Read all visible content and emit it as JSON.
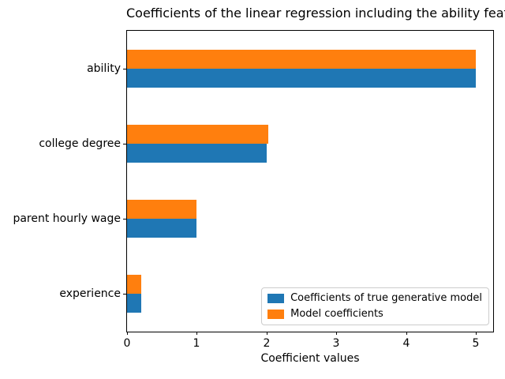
{
  "chart_data": {
    "type": "bar",
    "orientation": "horizontal",
    "title": "Coefficients of the linear regression including the ability features",
    "xlabel": "Coefficient values",
    "ylabel": "",
    "categories": [
      "ability",
      "college degree",
      "parent hourly wage",
      "experience"
    ],
    "series": [
      {
        "name": "Coefficients of true generative model",
        "color": "#1f77b4",
        "values": [
          5.0,
          2.0,
          1.0,
          0.2
        ]
      },
      {
        "name": "Model coefficients",
        "color": "#ff7f0e",
        "values": [
          5.0,
          2.02,
          1.0,
          0.2
        ]
      }
    ],
    "xticks": [
      0,
      1,
      2,
      3,
      4,
      5
    ],
    "xlim": [
      0,
      5.25
    ],
    "grid": false,
    "legend_position": "lower right",
    "plot_bg": "#ffffff"
  },
  "colors": {
    "true_model": "#1f77b4",
    "fitted_model": "#ff7f0e",
    "spine": "#000000",
    "legend_border": "#cccccc"
  }
}
